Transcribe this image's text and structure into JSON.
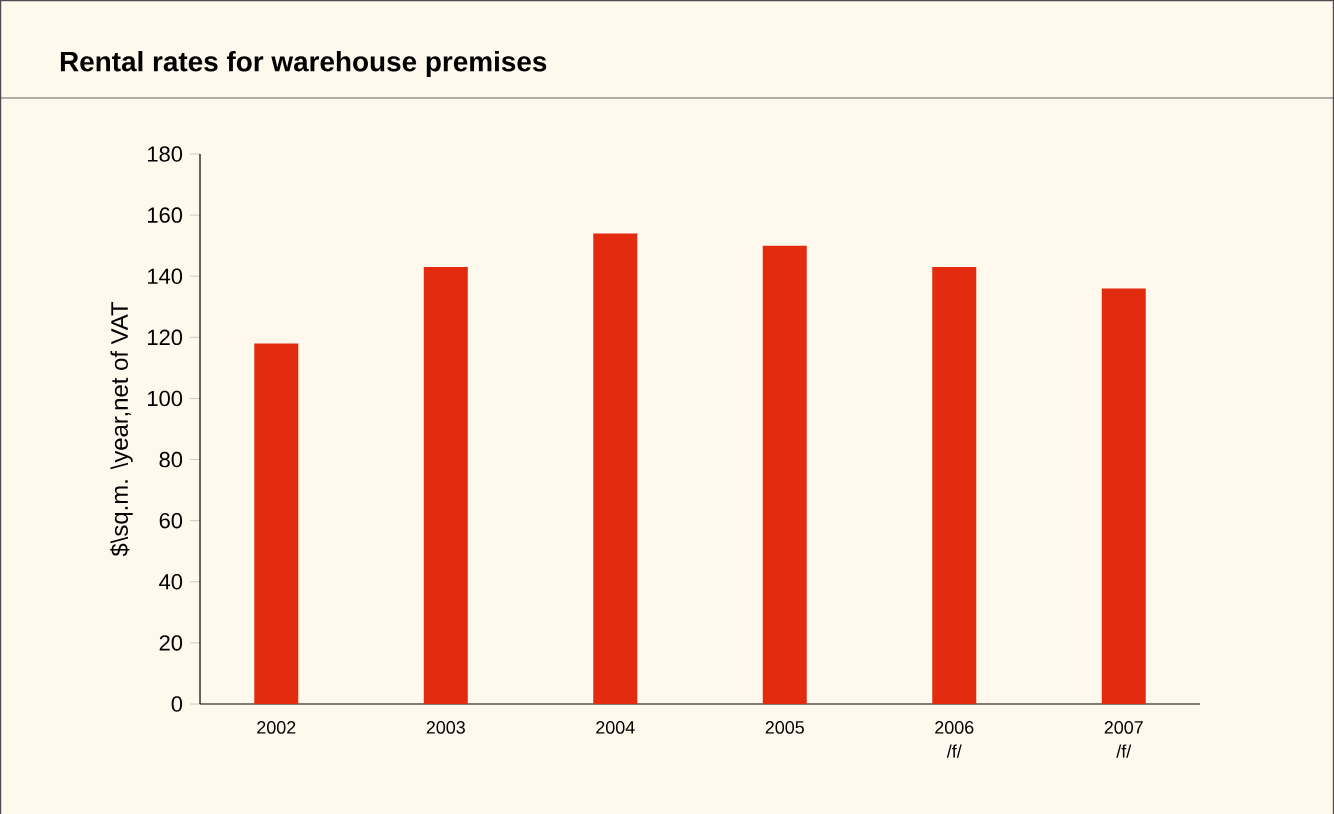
{
  "chart_data": {
    "type": "bar",
    "title": "Rental rates for warehouse premises",
    "ylabel": "$\\sq.m. \\year,net of VAT",
    "categories": [
      "2002",
      "2003",
      "2004",
      "2005",
      "2006 /f/",
      "2007 /f/"
    ],
    "values": [
      118,
      143,
      154,
      150,
      143,
      136
    ],
    "color": "#e32b0f",
    "ylim": [
      0,
      180
    ],
    "yticks": [
      0,
      20,
      40,
      60,
      80,
      100,
      120,
      140,
      160,
      180
    ],
    "grid": false
  }
}
